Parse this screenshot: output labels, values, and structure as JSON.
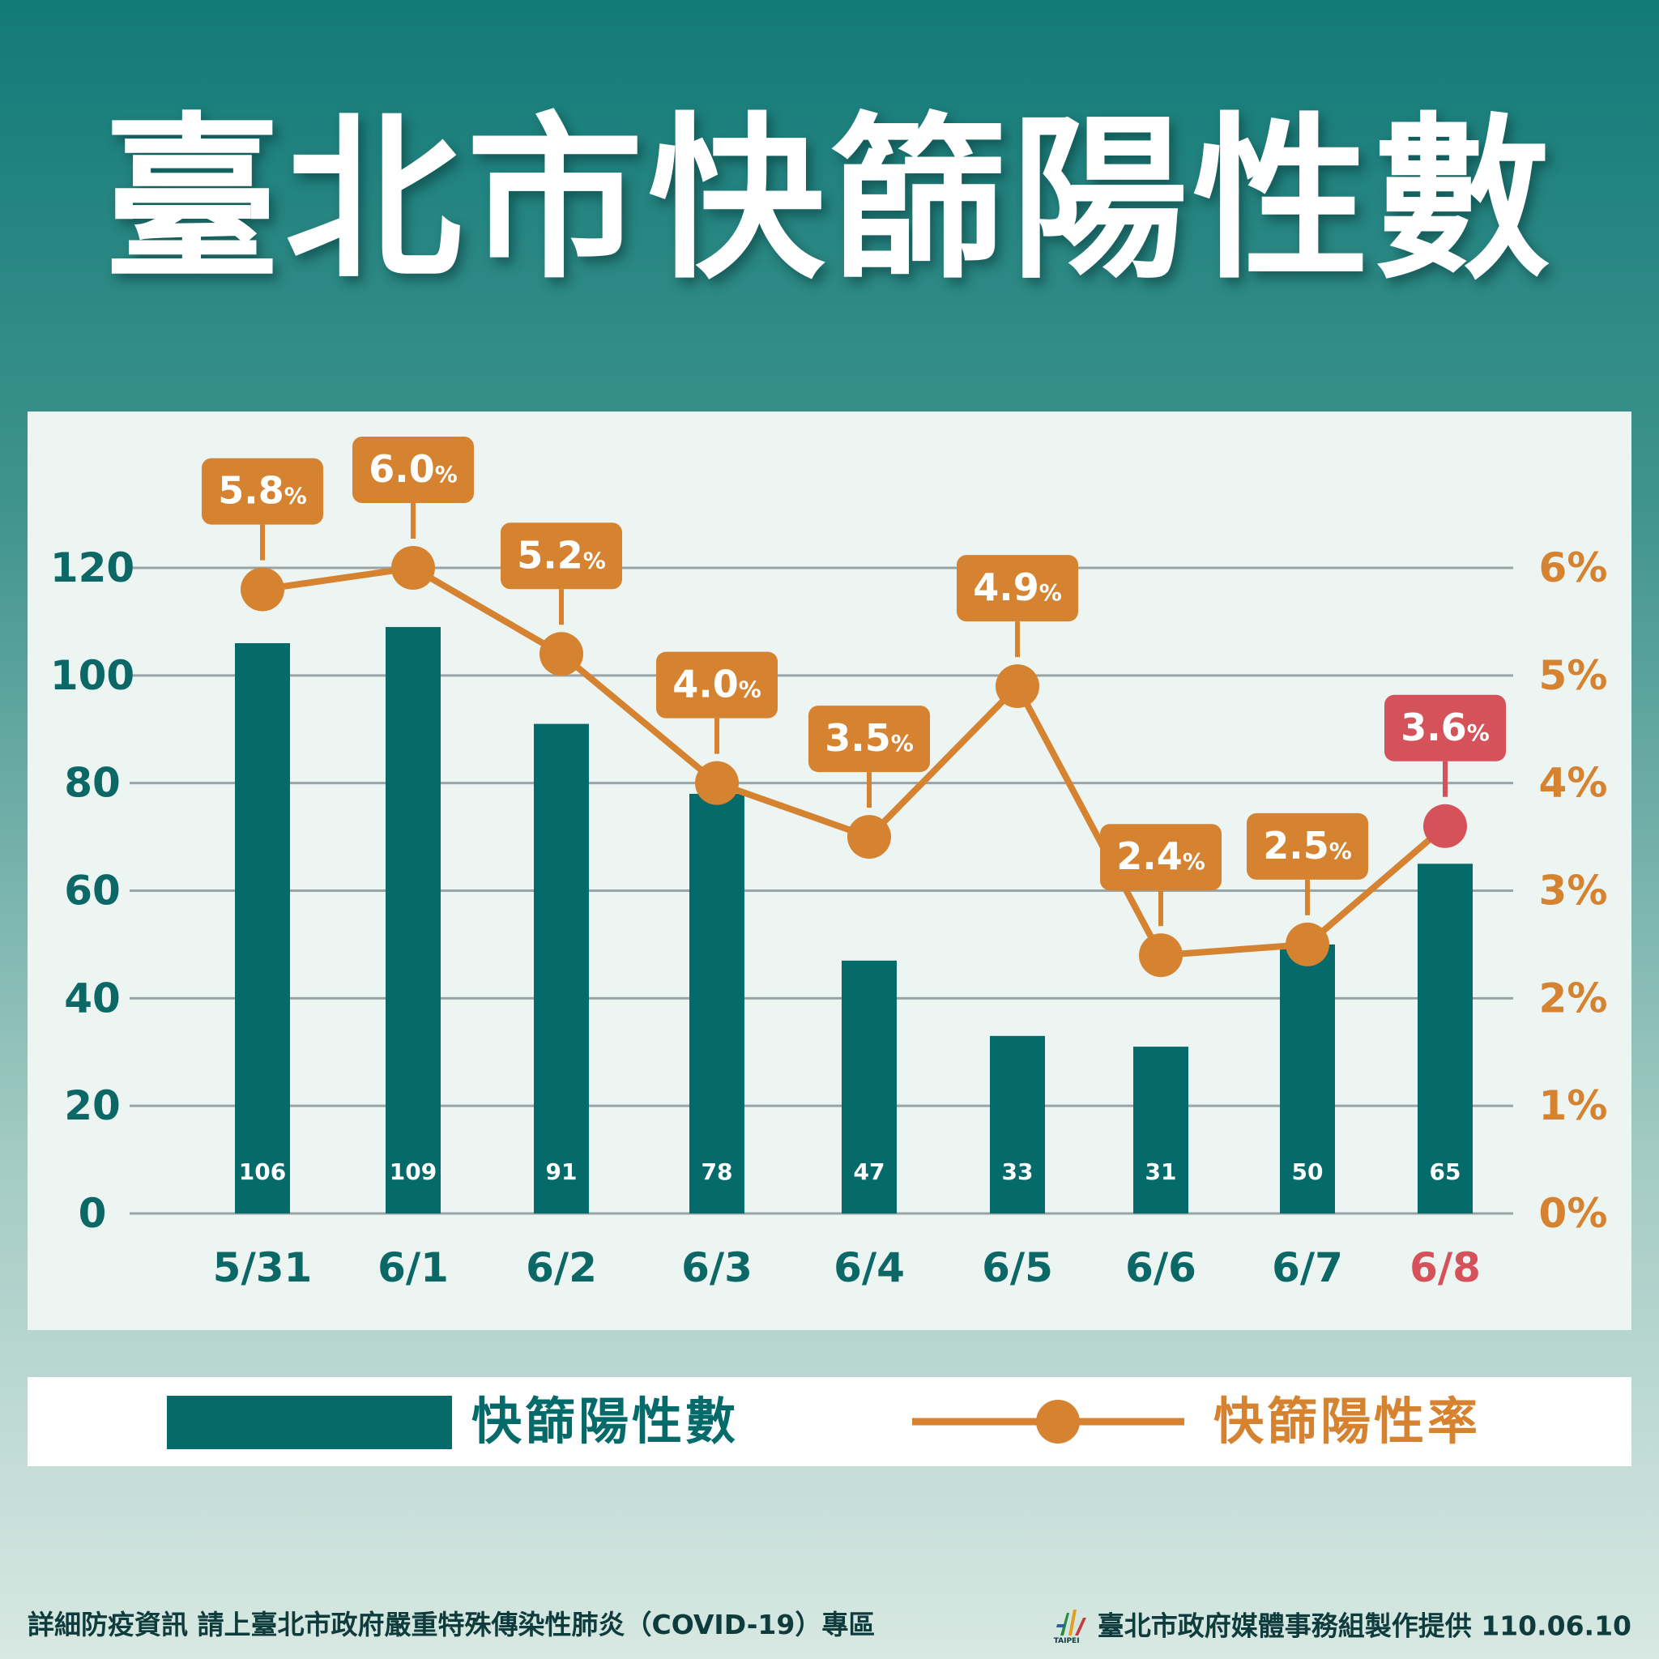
{
  "title": "臺北市快篩陽性數",
  "colors": {
    "bar": "#056b6a",
    "line": "#d58331",
    "highlight": "#d6525a",
    "grid": "#9aa3a6",
    "left_axis_text": "#0b6866",
    "right_axis_text": "#d58331"
  },
  "chart_data": {
    "type": "bar",
    "categories": [
      "5/31",
      "6/1",
      "6/2",
      "6/3",
      "6/4",
      "6/5",
      "6/6",
      "6/7",
      "6/8"
    ],
    "highlight_category": "6/8",
    "series": [
      {
        "name": "快篩陽性數",
        "type": "bar",
        "axis": "left",
        "values": [
          106,
          109,
          91,
          78,
          47,
          33,
          31,
          50,
          65
        ],
        "labels": [
          "106",
          "109",
          "91",
          "78",
          "47",
          "33",
          "31",
          "50",
          "65"
        ]
      },
      {
        "name": "快篩陽性率",
        "type": "line",
        "axis": "right",
        "values": [
          5.8,
          6.0,
          5.2,
          4.0,
          3.5,
          4.9,
          2.4,
          2.5,
          3.6
        ],
        "labels": [
          "5.8",
          "6.0",
          "5.2",
          "4.0",
          "3.5",
          "4.9",
          "2.4",
          "2.5",
          "3.6"
        ],
        "label_unit": "%"
      }
    ],
    "y_left": {
      "ylim": [
        0,
        120
      ],
      "ticks": [
        "0",
        "20",
        "40",
        "60",
        "80",
        "100",
        "120"
      ]
    },
    "y_right": {
      "ylim": [
        0,
        6
      ],
      "ticks": [
        "0%",
        "1%",
        "2%",
        "3%",
        "4%",
        "5%",
        "6%"
      ]
    },
    "grid": true,
    "legend": {
      "placement": "bottom",
      "items": [
        "快篩陽性數",
        "快篩陽性率"
      ]
    }
  },
  "footer": {
    "left": "詳細防疫資訊 請上臺北市政府嚴重特殊傳染性肺炎（COVID-19）專區",
    "logo_text": "TAIPEI",
    "right": "臺北市政府媒體事務組製作提供 110.06.10"
  }
}
